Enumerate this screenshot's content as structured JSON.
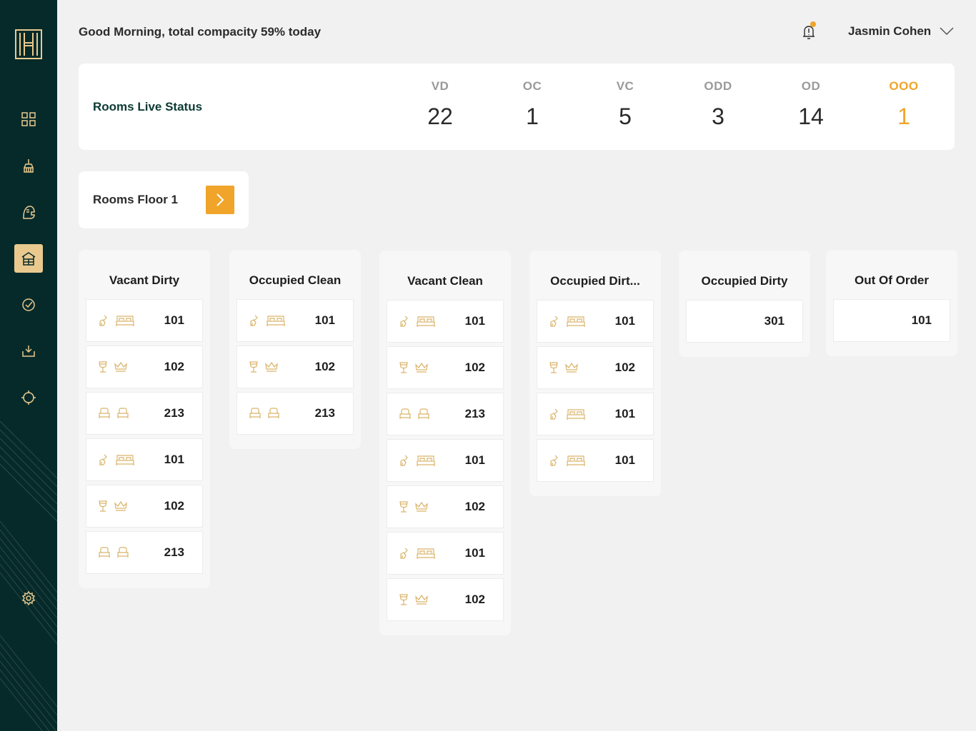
{
  "header": {
    "greeting": "Good Morning, total compacity 59% today",
    "user_name": "Jasmin Cohen",
    "notification_color": "#f0a52a"
  },
  "status": {
    "title": "Rooms Live  Status",
    "stats": [
      {
        "label": "VD",
        "value": "22"
      },
      {
        "label": "OC",
        "value": "1"
      },
      {
        "label": "VC",
        "value": "5"
      },
      {
        "label": "ODD",
        "value": "3"
      },
      {
        "label": "OD",
        "value": "14"
      },
      {
        "label": "OOO",
        "value": "1"
      }
    ]
  },
  "floor": {
    "label": "Rooms Floor 1"
  },
  "columns": [
    {
      "title": "Vacant Dirty",
      "rooms": [
        {
          "icons": [
            "mop-icon",
            "double-bed-icon"
          ],
          "number": "101"
        },
        {
          "icons": [
            "wine-glass-icon",
            "crown-icon"
          ],
          "number": "102"
        },
        {
          "icons": [
            "single-bed-icon",
            "single-bed-icon"
          ],
          "number": "213"
        },
        {
          "icons": [
            "mop-icon",
            "double-bed-icon"
          ],
          "number": "101"
        },
        {
          "icons": [
            "wine-glass-icon",
            "crown-icon"
          ],
          "number": "102"
        },
        {
          "icons": [
            "single-bed-icon",
            "single-bed-icon"
          ],
          "number": "213"
        }
      ]
    },
    {
      "title": "Occupied Clean",
      "rooms": [
        {
          "icons": [
            "mop-icon",
            "double-bed-icon"
          ],
          "number": "101"
        },
        {
          "icons": [
            "wine-glass-icon",
            "crown-icon"
          ],
          "number": "102"
        },
        {
          "icons": [
            "single-bed-icon",
            "single-bed-icon"
          ],
          "number": "213"
        }
      ]
    },
    {
      "title": "Vacant Clean",
      "rooms": [
        {
          "icons": [
            "mop-icon",
            "double-bed-icon"
          ],
          "number": "101"
        },
        {
          "icons": [
            "wine-glass-icon",
            "crown-icon"
          ],
          "number": "102"
        },
        {
          "icons": [
            "single-bed-icon",
            "single-bed-icon"
          ],
          "number": "213"
        },
        {
          "icons": [
            "mop-icon",
            "double-bed-icon"
          ],
          "number": "101"
        },
        {
          "icons": [
            "wine-glass-icon",
            "crown-icon"
          ],
          "number": "102"
        },
        {
          "icons": [
            "mop-icon",
            "double-bed-icon"
          ],
          "number": "101"
        },
        {
          "icons": [
            "wine-glass-icon",
            "crown-icon"
          ],
          "number": "102"
        }
      ]
    },
    {
      "title": "Occupied Dirt...",
      "rooms": [
        {
          "icons": [
            "mop-icon",
            "double-bed-icon"
          ],
          "number": "101"
        },
        {
          "icons": [
            "wine-glass-icon",
            "crown-icon"
          ],
          "number": "102"
        },
        {
          "icons": [
            "mop-icon",
            "double-bed-icon"
          ],
          "number": "101"
        },
        {
          "icons": [
            "mop-icon",
            "double-bed-icon"
          ],
          "number": "101"
        }
      ]
    },
    {
      "title": "Occupied Dirty",
      "rooms": [
        {
          "icons": [],
          "number": "301"
        }
      ]
    },
    {
      "title": "Out Of Order",
      "rooms": [
        {
          "icons": [],
          "number": "101"
        }
      ]
    }
  ],
  "colors": {
    "sidebar": "#062a2a",
    "accent": "#f0a52a",
    "icon_gold": "#d9b46a",
    "active_nav": "#e9c98e"
  }
}
